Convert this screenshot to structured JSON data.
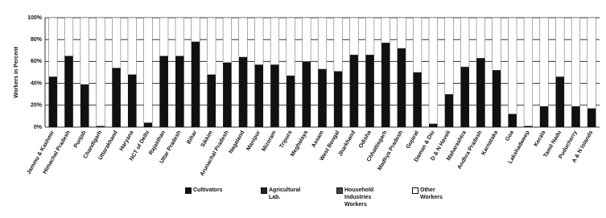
{
  "chart_data": {
    "type": "stacked_bar",
    "y_label": "Workers in Percent",
    "categories": [
      "Jammu & Kashmir",
      "Himachal Pradesh",
      "Punjab",
      "Chandigarh",
      "Uttarakhand",
      "Haryana",
      "NCT of Delhi",
      "Rajasthan",
      "Uttar Pradesh",
      "Bihar",
      "Sikkim",
      "Arunachal Pradesh",
      "Nagaland",
      "Manipur",
      "Mizoram",
      "Tripura",
      "Meghalaya",
      "Assam",
      "West Bengal",
      "Jharkhand",
      "Odisha",
      "Chhattisgarh",
      "Madhya Pradesh",
      "Gujarat",
      "Daman & Diu",
      "D & N Haveli",
      "Maharashtra",
      "Andhra Pradesh",
      "Karnataka",
      "Goa",
      "Lakshadweep",
      "Kerala",
      "Tamil Nadu",
      "Puducherry",
      "A & N Islands"
    ],
    "series": [
      {
        "name": "Cultivators",
        "color": "#111111",
        "values": [
          46,
          65,
          39,
          1,
          54,
          48,
          4,
          65,
          65,
          78,
          48,
          59,
          64,
          57,
          57,
          47,
          60,
          53,
          51,
          66,
          66,
          77,
          72,
          50,
          3,
          30,
          55,
          63,
          52,
          12,
          1,
          19,
          46,
          19,
          17
        ]
      },
      {
        "name": "Agricultural Lab.",
        "color": "#222222",
        "values": [
          0,
          0,
          0,
          0,
          0,
          0,
          0,
          0,
          0,
          0,
          0,
          0,
          0,
          0,
          0,
          0,
          0,
          0,
          0,
          0,
          0,
          0,
          0,
          0,
          0,
          0,
          0,
          0,
          0,
          0,
          0,
          0,
          0,
          0,
          0
        ]
      },
      {
        "name": "Household Industries Workers",
        "color": "#444444",
        "values": [
          0,
          0,
          0,
          0,
          0,
          0,
          0,
          0,
          0,
          0,
          0,
          0,
          0,
          0,
          0,
          0,
          0,
          0,
          0,
          0,
          0,
          0,
          0,
          0,
          0,
          0,
          0,
          0,
          0,
          0,
          0,
          0,
          0,
          0,
          0
        ]
      },
      {
        "name": "Other Workers",
        "color": "#ffffff",
        "values": [
          54,
          35,
          61,
          99,
          46,
          52,
          96,
          35,
          35,
          22,
          52,
          41,
          36,
          43,
          43,
          53,
          40,
          47,
          49,
          34,
          34,
          23,
          28,
          50,
          97,
          70,
          45,
          37,
          48,
          88,
          99,
          81,
          54,
          81,
          83
        ]
      }
    ],
    "ylim": [
      0,
      100
    ],
    "yticks": [
      {
        "value": 0,
        "label": "0%"
      },
      {
        "value": 20,
        "label": "20%"
      },
      {
        "value": 40,
        "label": "40%"
      },
      {
        "value": 60,
        "label": "60%"
      },
      {
        "value": 80,
        "label": "80%"
      },
      {
        "value": 100,
        "label": "100%"
      }
    ],
    "grid": true
  }
}
